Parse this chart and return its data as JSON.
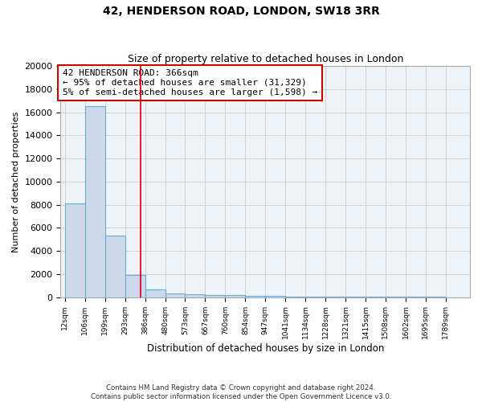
{
  "title": "42, HENDERSON ROAD, LONDON, SW18 3RR",
  "subtitle": "Size of property relative to detached houses in London",
  "xlabel": "Distribution of detached houses by size in London",
  "ylabel": "Number of detached properties",
  "bin_edges": [
    12,
    106,
    199,
    293,
    386,
    480,
    573,
    667,
    760,
    854,
    947,
    1041,
    1134,
    1228,
    1321,
    1415,
    1508,
    1602,
    1695,
    1789,
    1882
  ],
  "bar_heights": [
    8100,
    16500,
    5300,
    1900,
    700,
    350,
    270,
    200,
    150,
    100,
    80,
    60,
    50,
    40,
    30,
    20,
    15,
    10,
    8,
    5
  ],
  "bar_color": "#ccd9ea",
  "bar_edge_color": "#6aaad4",
  "red_line_x": 366,
  "annotation_line1": "42 HENDERSON ROAD: 366sqm",
  "annotation_line2": "← 95% of detached houses are smaller (31,329)",
  "annotation_line3": "5% of semi-detached houses are larger (1,598) →",
  "annotation_box_color": "#cc0000",
  "ylim": [
    0,
    20000
  ],
  "yticks": [
    0,
    2000,
    4000,
    6000,
    8000,
    10000,
    12000,
    14000,
    16000,
    18000,
    20000
  ],
  "grid_color": "#cccccc",
  "plot_bg_color": "#eef3f8",
  "background_color": "#ffffff",
  "footer_line1": "Contains HM Land Registry data © Crown copyright and database right 2024.",
  "footer_line2": "Contains public sector information licensed under the Open Government Licence v3.0."
}
